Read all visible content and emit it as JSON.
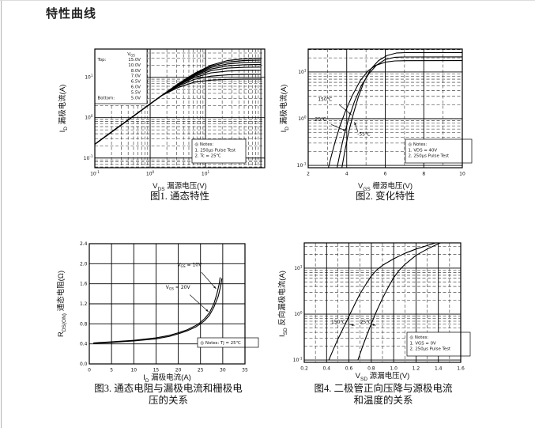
{
  "page": {
    "title": "特性曲线"
  },
  "chart_data": [
    {
      "id": "fig1",
      "type": "line",
      "caption": "图1. 通态特性",
      "xlabel": {
        "pre": "V",
        "sub": "DS",
        "post": " 漏源电压(V)"
      },
      "ylabel": {
        "pre": "I",
        "sub": "D",
        "post": " 漏极电流(A)"
      },
      "x_axis": {
        "type": "log",
        "min": -1,
        "max": 2.07,
        "labels": [
          -1,
          0,
          1
        ]
      },
      "y_axis": {
        "type": "log",
        "min": -1.24,
        "max": 1.7,
        "labels": [
          -1,
          0,
          1
        ]
      },
      "legend": {
        "header": {
          "pre": "V",
          "sub": "GS"
        },
        "rows": [
          {
            "label": "Top:",
            "value": "15.0V"
          },
          {
            "value": "10.0V"
          },
          {
            "value": "8.0V"
          },
          {
            "value": "7.0V"
          },
          {
            "value": "6.5V"
          },
          {
            "value": "6.0V"
          },
          {
            "value": "5.5V"
          },
          {
            "label": "Bottom:",
            "value": "5.0V"
          }
        ]
      },
      "notes": [
        "◎ Notes:",
        "1. 250μs Pulse Test",
        "2. Tc = 25℃"
      ],
      "series": [
        {
          "name": "VGS=15.0V",
          "points": [
            [
              0.1,
              0.22
            ],
            [
              0.2,
              0.44
            ],
            [
              0.4,
              0.88
            ],
            [
              0.8,
              1.75
            ],
            [
              1.6,
              3.5
            ],
            [
              3.2,
              6.9
            ],
            [
              6.3,
              12.5
            ],
            [
              12.6,
              20
            ],
            [
              25,
              26
            ],
            [
              50,
              28.8
            ],
            [
              100,
              29.8
            ]
          ]
        },
        {
          "name": "VGS=10.0V",
          "points": [
            [
              0.1,
              0.22
            ],
            [
              0.2,
              0.44
            ],
            [
              0.4,
              0.88
            ],
            [
              0.8,
              1.75
            ],
            [
              1.6,
              3.5
            ],
            [
              3.2,
              6.8
            ],
            [
              6.3,
              12.1
            ],
            [
              12.6,
              18.8
            ],
            [
              25,
              23.8
            ],
            [
              50,
              26
            ],
            [
              100,
              26.8
            ]
          ]
        },
        {
          "name": "VGS=8.0V",
          "points": [
            [
              0.1,
              0.22
            ],
            [
              0.2,
              0.44
            ],
            [
              0.4,
              0.88
            ],
            [
              0.8,
              1.75
            ],
            [
              1.6,
              3.5
            ],
            [
              3.2,
              6.7
            ],
            [
              6.3,
              11.7
            ],
            [
              12.6,
              17.5
            ],
            [
              25,
              21.5
            ],
            [
              50,
              23.2
            ],
            [
              100,
              23.8
            ]
          ]
        },
        {
          "name": "VGS=7.0V",
          "points": [
            [
              0.1,
              0.22
            ],
            [
              0.2,
              0.44
            ],
            [
              0.4,
              0.88
            ],
            [
              0.8,
              1.75
            ],
            [
              1.6,
              3.5
            ],
            [
              3.2,
              6.6
            ],
            [
              6.3,
              11.2
            ],
            [
              12.6,
              16.1
            ],
            [
              25,
              19.2
            ],
            [
              50,
              20.5
            ],
            [
              100,
              20.9
            ]
          ]
        },
        {
          "name": "VGS=6.5V",
          "points": [
            [
              0.1,
              0.22
            ],
            [
              0.2,
              0.44
            ],
            [
              0.4,
              0.88
            ],
            [
              0.8,
              1.75
            ],
            [
              1.6,
              3.5
            ],
            [
              3.2,
              6.5
            ],
            [
              6.3,
              10.6
            ],
            [
              12.6,
              14.6
            ],
            [
              25,
              16.9
            ],
            [
              50,
              17.7
            ],
            [
              100,
              17.9
            ]
          ]
        },
        {
          "name": "VGS=6.0V",
          "points": [
            [
              0.1,
              0.22
            ],
            [
              0.2,
              0.44
            ],
            [
              0.4,
              0.88
            ],
            [
              0.8,
              1.75
            ],
            [
              1.6,
              3.5
            ],
            [
              3.2,
              6.3
            ],
            [
              6.3,
              9.9
            ],
            [
              12.6,
              12.9
            ],
            [
              25,
              14.3
            ],
            [
              50,
              14.8
            ],
            [
              100,
              14.9
            ]
          ]
        },
        {
          "name": "VGS=5.5V",
          "points": [
            [
              0.1,
              0.22
            ],
            [
              0.2,
              0.44
            ],
            [
              0.4,
              0.88
            ],
            [
              0.8,
              1.75
            ],
            [
              1.6,
              3.5
            ],
            [
              3.2,
              6.0
            ],
            [
              6.3,
              8.9
            ],
            [
              12.6,
              10.7
            ],
            [
              25,
              11.5
            ],
            [
              50,
              11.8
            ],
            [
              100,
              11.9
            ]
          ]
        },
        {
          "name": "VGS=5.0V",
          "points": [
            [
              0.1,
              0.22
            ],
            [
              0.2,
              0.44
            ],
            [
              0.4,
              0.88
            ],
            [
              0.8,
              1.75
            ],
            [
              1.6,
              3.5
            ],
            [
              3.2,
              5.6
            ],
            [
              6.3,
              7.6
            ],
            [
              12.6,
              8.5
            ],
            [
              25,
              8.9
            ],
            [
              50,
              9.0
            ],
            [
              100,
              9.0
            ]
          ]
        }
      ],
      "annotations": []
    },
    {
      "id": "fig2",
      "type": "line",
      "caption": "图2. 变化特性",
      "xlabel": {
        "pre": "V",
        "sub": "GS",
        "post": " 栅源电压(V)"
      },
      "ylabel": {
        "pre": "I",
        "sub": "D",
        "post": " 漏极电流(A)"
      },
      "x_axis": {
        "type": "linear",
        "min": 2,
        "max": 10,
        "step": 2,
        "minor": 1,
        "decimals": 0
      },
      "y_axis": {
        "type": "log",
        "min": -1.05,
        "max": 1.49,
        "labels": [
          -1,
          0,
          1
        ]
      },
      "notes": [
        "◎ Notes:",
        "1. VDS = 40V",
        "2. 250μs Pulse Test"
      ],
      "series": [
        {
          "name": "150℃",
          "points": [
            [
              3.05,
              0.09
            ],
            [
              3.2,
              0.16
            ],
            [
              3.4,
              0.32
            ],
            [
              3.65,
              0.7
            ],
            [
              3.95,
              1.5
            ],
            [
              4.3,
              3.2
            ],
            [
              4.7,
              6.5
            ],
            [
              5.1,
              10.5
            ],
            [
              5.5,
              13.8
            ],
            [
              6.0,
              16.2
            ],
            [
              6.5,
              17.2
            ],
            [
              7.0,
              17.4
            ],
            [
              10,
              17.5
            ]
          ]
        },
        {
          "name": "25℃",
          "points": [
            [
              3.5,
              0.09
            ],
            [
              3.65,
              0.18
            ],
            [
              3.85,
              0.42
            ],
            [
              4.1,
              1.0
            ],
            [
              4.4,
              2.3
            ],
            [
              4.75,
              5.0
            ],
            [
              5.15,
              9.2
            ],
            [
              5.55,
              14
            ],
            [
              6.0,
              18.5
            ],
            [
              6.5,
              20.6
            ],
            [
              7.0,
              20.9
            ],
            [
              10,
              21
            ]
          ]
        },
        {
          "name": "-55℃",
          "points": [
            [
              3.75,
              0.09
            ],
            [
              3.9,
              0.2
            ],
            [
              4.1,
              0.52
            ],
            [
              4.35,
              1.3
            ],
            [
              4.6,
              2.9
            ],
            [
              4.9,
              6.2
            ],
            [
              5.25,
              11.5
            ],
            [
              5.65,
              17.5
            ],
            [
              6.1,
              22.5
            ],
            [
              6.6,
              25.5
            ],
            [
              7.1,
              25.9
            ],
            [
              10,
              26
            ]
          ]
        }
      ],
      "annotations": [
        {
          "text": "150℃",
          "x": 2.5,
          "y": 2.4,
          "arrow": [
            3.6,
            2.0,
            4.25,
            1.2
          ]
        },
        {
          "text": "25℃",
          "x": 2.35,
          "y": 0.9,
          "arrow": [
            3.2,
            0.75,
            3.95,
            0.55
          ]
        },
        {
          "text": "-55℃",
          "x": 4.55,
          "y": 0.43,
          "arrow": [
            4.58,
            0.52,
            4.4,
            0.85
          ]
        }
      ]
    },
    {
      "id": "fig3",
      "type": "line",
      "caption": "图3. 通态电阻与漏极电流和栅极电压的关系",
      "xlabel": {
        "pre": "I",
        "sub": "D",
        "post": " 漏极电流(A)"
      },
      "ylabel": {
        "pre": "R",
        "sub": "DS(ON)",
        "post": " 通态电阻(Ω)"
      },
      "x_axis": {
        "type": "linear",
        "min": 0,
        "max": 35,
        "step": 5,
        "decimals": 0
      },
      "y_axis": {
        "type": "linear",
        "min": 0,
        "max": 2.4,
        "step": 0.4,
        "decimals": 1
      },
      "notes": [
        "◎ Notes: Tj = 25℃"
      ],
      "series": [
        {
          "name": "VGS=10V",
          "points": [
            [
              1,
              0.42
            ],
            [
              5,
              0.44
            ],
            [
              10,
              0.47
            ],
            [
              15,
              0.52
            ],
            [
              18,
              0.57
            ],
            [
              20,
              0.62
            ],
            [
              22,
              0.68
            ],
            [
              24,
              0.77
            ],
            [
              25,
              0.83
            ],
            [
              26,
              0.91
            ],
            [
              27,
              1.02
            ],
            [
              28,
              1.2
            ],
            [
              28.7,
              1.4
            ],
            [
              29.2,
              1.6
            ],
            [
              29.4,
              1.72
            ]
          ]
        },
        {
          "name": "VGS=20V",
          "points": [
            [
              1,
              0.41
            ],
            [
              5,
              0.43
            ],
            [
              10,
              0.46
            ],
            [
              15,
              0.5
            ],
            [
              18,
              0.55
            ],
            [
              20,
              0.6
            ],
            [
              22,
              0.66
            ],
            [
              24,
              0.74
            ],
            [
              25,
              0.8
            ],
            [
              26,
              0.87
            ],
            [
              27,
              0.97
            ],
            [
              28,
              1.13
            ],
            [
              29,
              1.35
            ],
            [
              29.6,
              1.58
            ],
            [
              29.8,
              1.7
            ]
          ]
        }
      ],
      "annotations": [
        {
          "pre": "V",
          "sub": "GS",
          "post": " = 10V",
          "x": 19.8,
          "y": 1.95,
          "arrow": [
            25.2,
            1.83,
            28.5,
            1.5
          ]
        },
        {
          "pre": "V",
          "sub": "GS",
          "post": " = 20V",
          "x": 17.2,
          "y": 1.5,
          "arrow": [
            22.6,
            1.38,
            26.8,
            1.04
          ]
        }
      ]
    },
    {
      "id": "fig4",
      "type": "line",
      "caption": "图4. 二极管正向压降与源极电流和温度的关系",
      "xlabel": {
        "pre": "V",
        "sub": "SD",
        "post": " 源漏电压(V)"
      },
      "ylabel": {
        "pre": "I",
        "sub": "SD",
        "post": " 反向漏极电流(A)"
      },
      "x_axis": {
        "type": "linear",
        "min": 0.2,
        "max": 1.6,
        "step": 0.2,
        "minor": 0.1,
        "decimals": 1
      },
      "y_axis": {
        "type": "log",
        "min": -1.05,
        "max": 1.55,
        "labels": [
          -1,
          0,
          1
        ]
      },
      "notes": [
        "◎ Notes:",
        "1. VGS = 0V",
        "2. 250μs Pulse Test"
      ],
      "series": [
        {
          "name": "150℃",
          "points": [
            [
              0.42,
              0.1
            ],
            [
              0.46,
              0.17
            ],
            [
              0.5,
              0.28
            ],
            [
              0.55,
              0.5
            ],
            [
              0.6,
              0.9
            ],
            [
              0.65,
              1.6
            ],
            [
              0.7,
              2.8
            ],
            [
              0.76,
              4.8
            ],
            [
              0.8,
              6.8
            ],
            [
              0.85,
              9.2
            ],
            [
              0.9,
              11.5
            ],
            [
              1.0,
              16
            ],
            [
              1.1,
              21
            ],
            [
              1.2,
              26
            ],
            [
              1.3,
              31
            ],
            [
              1.4,
              37
            ],
            [
              1.45,
              40
            ]
          ]
        },
        {
          "name": "25℃",
          "points": [
            [
              0.68,
              0.1
            ],
            [
              0.72,
              0.19
            ],
            [
              0.76,
              0.35
            ],
            [
              0.8,
              0.62
            ],
            [
              0.85,
              1.2
            ],
            [
              0.9,
              2.2
            ],
            [
              0.96,
              4.2
            ],
            [
              1.0,
              6.2
            ],
            [
              1.05,
              9
            ],
            [
              1.1,
              12
            ],
            [
              1.2,
              19
            ],
            [
              1.3,
              26
            ],
            [
              1.4,
              34
            ],
            [
              1.47,
              40
            ]
          ]
        }
      ],
      "annotations": [
        {
          "text": "150℃",
          "x": 0.44,
          "y": 0.62,
          "arrow": [
            0.6,
            0.6,
            0.65,
            0.57
          ]
        },
        {
          "text": "25℃",
          "x": 0.7,
          "y": 0.62,
          "arrow": [
            0.8,
            0.6,
            0.84,
            0.57
          ]
        }
      ]
    }
  ]
}
